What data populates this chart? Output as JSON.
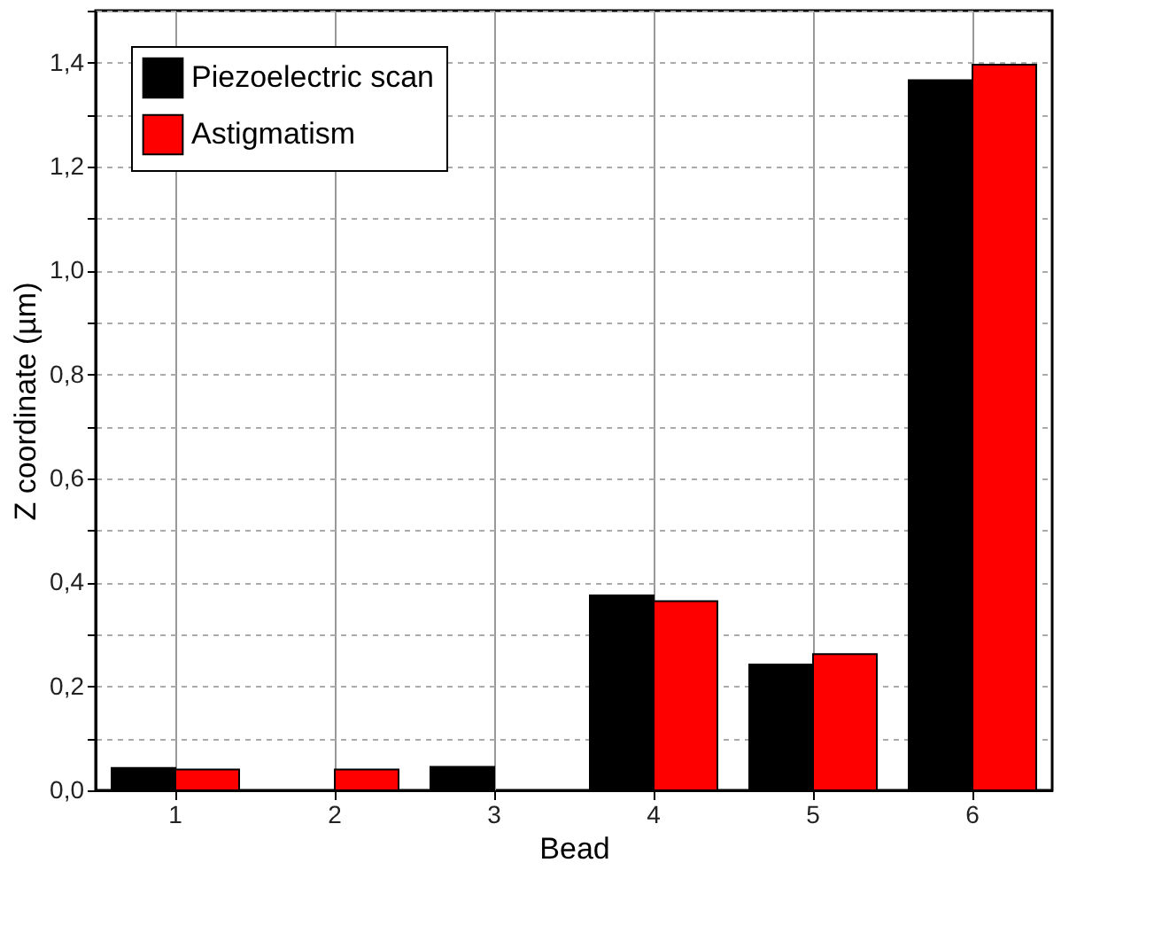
{
  "chart_data": {
    "type": "bar",
    "xlabel": "Bead",
    "ylabel": "Z coordinate (µm)",
    "categories": [
      "1",
      "2",
      "3",
      "4",
      "5",
      "6"
    ],
    "series": [
      {
        "name": "Piezoelectric scan",
        "color": "#000000",
        "values": [
          0.043,
          null,
          0.045,
          0.375,
          0.242,
          1.366
        ]
      },
      {
        "name": "Astigmatism",
        "color": "#ff0000",
        "values": [
          0.04,
          0.04,
          null,
          0.364,
          0.262,
          1.396
        ]
      }
    ],
    "ylim": [
      0,
      1.5
    ],
    "yticks": [
      {
        "value": 0,
        "label": "0,0"
      },
      {
        "value": 0.1,
        "label": null
      },
      {
        "value": 0.2,
        "label": "0,2"
      },
      {
        "value": 0.3,
        "label": null
      },
      {
        "value": 0.4,
        "label": "0,4"
      },
      {
        "value": 0.5,
        "label": null
      },
      {
        "value": 0.6,
        "label": "0,6"
      },
      {
        "value": 0.7,
        "label": null
      },
      {
        "value": 0.8,
        "label": "0,8"
      },
      {
        "value": 0.9,
        "label": null
      },
      {
        "value": 1.0,
        "label": "1,0"
      },
      {
        "value": 1.1,
        "label": null
      },
      {
        "value": 1.2,
        "label": "1,2"
      },
      {
        "value": 1.3,
        "label": null
      },
      {
        "value": 1.4,
        "label": "1,4"
      },
      {
        "value": 1.5,
        "label": null
      }
    ],
    "grid": true,
    "legend": "top left"
  }
}
